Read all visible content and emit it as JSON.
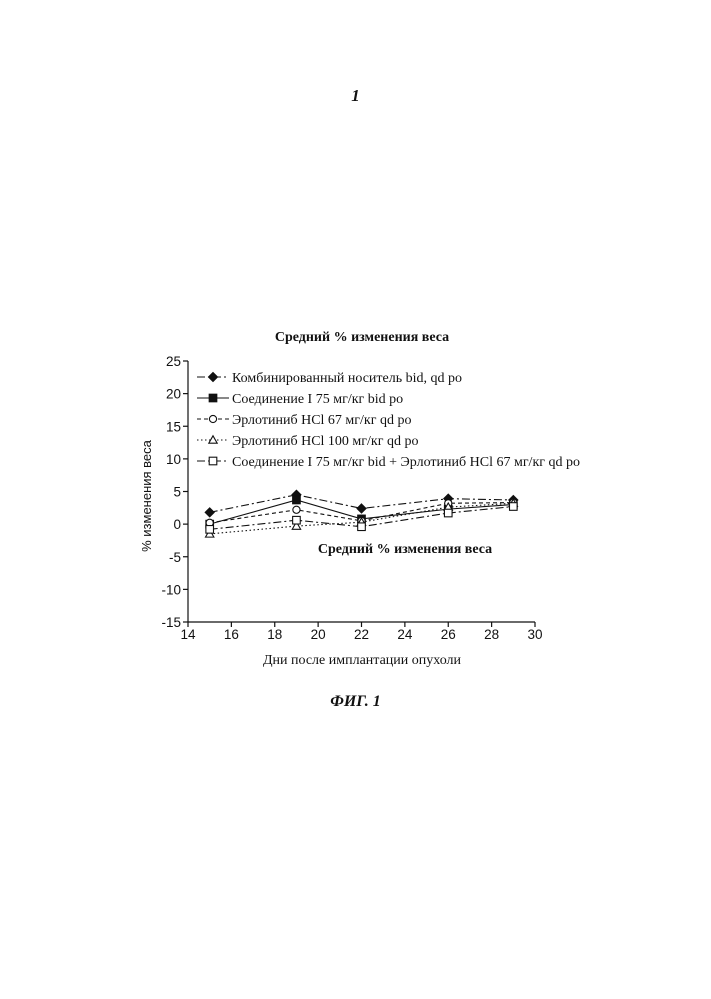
{
  "page": {
    "number": "1",
    "caption": "ФИГ. 1"
  },
  "chart_data": {
    "type": "line",
    "title": "Средний % изменения веса",
    "inner_title": "Средний % изменения веса",
    "xlabel": "Дни после имплантации опухоли",
    "ylabel": "% изменения веса",
    "xlim": [
      14,
      30
    ],
    "ylim": [
      -15,
      25
    ],
    "x_ticks": [
      "14",
      "16",
      "18",
      "20",
      "22",
      "24",
      "26",
      "28",
      "30"
    ],
    "y_ticks": [
      "25",
      "20",
      "15",
      "10",
      "5",
      "0",
      "-5",
      "-10",
      "-15"
    ],
    "x": [
      15,
      19,
      22,
      26,
      29
    ],
    "grid": false,
    "legend_position": "top-left",
    "series": [
      {
        "name": "Комбинированный носитель bid, qd po",
        "marker": "diamond-filled",
        "dash": "8,3,2,3",
        "values": [
          1.8,
          4.5,
          2.4,
          3.9,
          3.7
        ]
      },
      {
        "name": "Соединение I 75 мг/кг bid po",
        "marker": "square-filled",
        "dash": "",
        "values": [
          0.0,
          3.7,
          0.8,
          2.3,
          3.0
        ]
      },
      {
        "name": "Эрлотиниб HCl 67 мг/кг qd po",
        "marker": "circle-open",
        "dash": "4,3",
        "values": [
          0.2,
          2.2,
          0.5,
          3.2,
          3.3
        ]
      },
      {
        "name": "Эрлотиниб HCl 100 мг/кг qd po",
        "marker": "triangle-open",
        "dash": "1.5,2.5",
        "values": [
          -1.5,
          -0.3,
          0.3,
          2.6,
          3.2
        ]
      },
      {
        "name": "Соединение I 75 мг/кг bid + Эрлотиниб HCl 67 мг/кг qd po",
        "marker": "square-open",
        "dash": "8,3,2,3",
        "values": [
          -0.8,
          0.6,
          -0.4,
          1.7,
          2.7
        ]
      }
    ]
  }
}
